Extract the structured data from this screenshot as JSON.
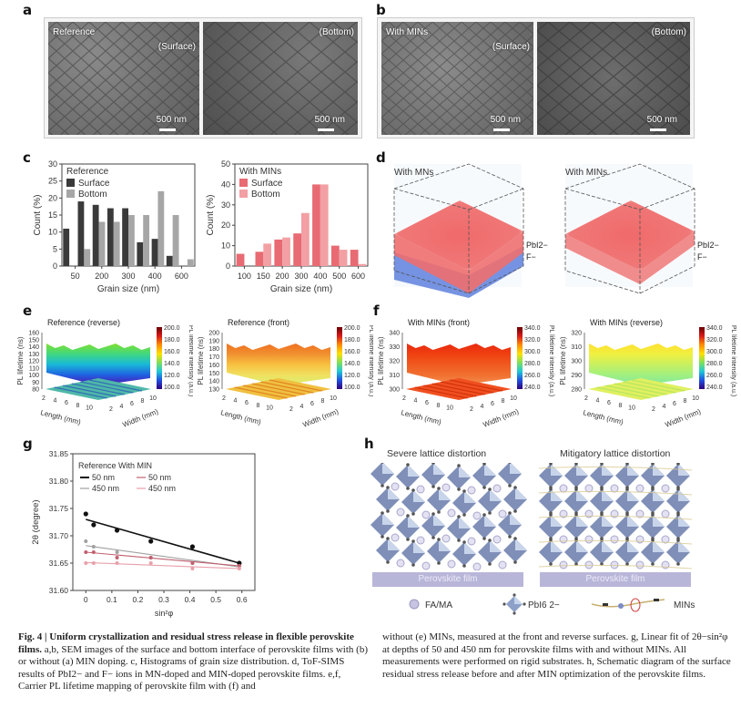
{
  "figure": {
    "panel_labels": [
      "a",
      "b",
      "c",
      "d",
      "e",
      "f",
      "g",
      "h"
    ],
    "panel_a": {
      "label": "Reference",
      "left_tag": "(Surface)",
      "right_tag": "(Bottom)",
      "scale": "500 nm"
    },
    "panel_b": {
      "label": "With MINs",
      "left_tag": "(Surface)",
      "right_tag": "(Bottom)",
      "scale": "500 nm"
    },
    "panel_d": {
      "left_label": "With MNs",
      "right_label": "With MINs",
      "ion1": "PbI2−",
      "ion2": "F−"
    },
    "panel_e": {
      "left": {
        "title": "Reference (reverse)",
        "zlabel": "PL lifetime (ns)",
        "zticks": [
          "160",
          "150",
          "140",
          "130",
          "120",
          "110",
          "100",
          "90",
          "80"
        ],
        "cbar": [
          "200.0",
          "180.0",
          "160.0",
          "140.0",
          "120.0",
          "100.0"
        ]
      },
      "right": {
        "title": "Reference (front)",
        "zlabel": "PL lifetime (ns)",
        "zticks": [
          "200",
          "190",
          "180",
          "170",
          "160",
          "150",
          "140",
          "130"
        ],
        "cbar": [
          "200.0",
          "180.0",
          "160.0",
          "140.0",
          "120.0",
          "100.0"
        ]
      },
      "cbar_label": "PL lifetime intensity (a.u.)",
      "length_label": "Length (mm)",
      "width_label": "Width (mm)",
      "length_ticks": [
        "2",
        "4",
        "6",
        "8",
        "10"
      ],
      "width_ticks": [
        "2",
        "4",
        "6",
        "8",
        "10"
      ]
    },
    "panel_f": {
      "left": {
        "title": "With MINs (front)",
        "zlabel": "PL lifetime (ns)",
        "zticks": [
          "340",
          "330",
          "320",
          "310",
          "300"
        ],
        "cbar": [
          "340.0",
          "320.0",
          "300.0",
          "280.0",
          "260.0",
          "240.0"
        ]
      },
      "right": {
        "title": "With MINs (reverse)",
        "zlabel": "PL lifetime (ns)",
        "zticks": [
          "320",
          "310",
          "300",
          "290",
          "280"
        ],
        "cbar": [
          "340.0",
          "320.0",
          "300.0",
          "280.0",
          "260.0",
          "240.0"
        ]
      }
    },
    "panel_h": {
      "left_title": "Severe lattice distortion",
      "right_title": "Mitigatory lattice distortion",
      "film_label": "Perovskite film",
      "legend": [
        {
          "label": "FA/MA"
        },
        {
          "label": "PbI6 2−"
        },
        {
          "label": "MINs"
        }
      ]
    },
    "caption": {
      "heading": "Fig. 4 | Uniform crystallization and residual stress release in flexible perovskite films.",
      "col1_rest": " a,b, SEM images of the surface and bottom interface of perovskite films with (b) or without (a) MIN doping. c, Histograms of grain size distribution. d, ToF-SIMS results of PbI2− and F− ions in MN-doped and MIN-doped perovskite films. e,f, Carrier PL lifetime mapping of perovskite film with (f) and",
      "col2": "without (e) MINs, measured at the front and reverse surfaces. g, Linear fit of 2θ−sin²φ at depths of 50 and 450 nm for perovskite films with and without MINs. All measurements were performed on rigid substrates. h, Schematic diagram of the surface residual stress release before and after MIN optimization of the perovskite films."
    }
  },
  "chart_data": [
    {
      "id": "c-reference",
      "type": "bar",
      "title": "Reference",
      "xlabel": "Grain size (nm)",
      "ylabel": "Count (%)",
      "ylim": [
        0,
        30
      ],
      "yticks": [
        0,
        5,
        10,
        15,
        20,
        25,
        30
      ],
      "xtick_labels": [
        "50",
        "200",
        "300",
        "400",
        "600"
      ],
      "categories": [
        "50",
        "100",
        "200",
        "250",
        "300",
        "350",
        "400",
        "450",
        "600"
      ],
      "series": [
        {
          "name": "Surface",
          "color": "#3a3a3a",
          "values": [
            11,
            19,
            18,
            17,
            17,
            7,
            8,
            3,
            0
          ]
        },
        {
          "name": "Bottom",
          "color": "#a6a6a6",
          "values": [
            0,
            5,
            13,
            13,
            15,
            15,
            22,
            15,
            2
          ]
        }
      ],
      "legend": "top-left"
    },
    {
      "id": "c-mins",
      "type": "bar",
      "title": "With MINs",
      "xlabel": "Grain size (nm)",
      "ylabel": "Count (%)",
      "ylim": [
        0,
        50
      ],
      "yticks": [
        0,
        10,
        20,
        30,
        40,
        50
      ],
      "xtick_labels": [
        "100",
        "150",
        "200",
        "300",
        "400",
        "500",
        "600"
      ],
      "categories": [
        "100",
        "150",
        "200",
        "300",
        "400",
        "500",
        "600"
      ],
      "series": [
        {
          "name": "Surface",
          "color": "#e86a72",
          "values": [
            6,
            7,
            13,
            16,
            40,
            10,
            8
          ]
        },
        {
          "name": "Bottom",
          "color": "#f2a0a4",
          "values": [
            0,
            11,
            14,
            26,
            40,
            8,
            1
          ]
        }
      ],
      "legend": "top-left"
    },
    {
      "id": "g",
      "type": "scatter",
      "xlabel": "sin²φ",
      "ylabel": "2θ (degree)",
      "xlim": [
        -0.05,
        0.65
      ],
      "ylim": [
        31.6,
        31.85
      ],
      "xticks": [
        "0",
        "0.1",
        "0.2",
        "0.3",
        "0.4",
        "0.5",
        "0.6"
      ],
      "yticks": [
        "31.60",
        "31.65",
        "31.70",
        "31.75",
        "31.80",
        "31.85"
      ],
      "legend_title": "Reference With MIN",
      "x": [
        0,
        0.03,
        0.12,
        0.25,
        0.41,
        0.59
      ],
      "series": [
        {
          "name": "50 nm (Reference)",
          "color": "#111111",
          "values": [
            31.74,
            31.72,
            31.71,
            31.69,
            31.68,
            31.65
          ],
          "fit": [
            31.73,
            31.65
          ]
        },
        {
          "name": "450 nm (Reference)",
          "color": "#a0a0a0",
          "values": [
            31.69,
            31.68,
            31.67,
            31.66,
            31.65,
            31.645
          ],
          "fit": [
            31.682,
            31.643
          ]
        },
        {
          "name": "50 nm (With MIN)",
          "color": "#c06070",
          "values": [
            31.67,
            31.67,
            31.66,
            31.66,
            31.65,
            31.645
          ],
          "fit": [
            31.67,
            31.645
          ]
        },
        {
          "name": "450 nm (With MIN)",
          "color": "#e8a0aa",
          "values": [
            31.65,
            31.65,
            31.65,
            31.65,
            31.64,
            31.64
          ],
          "fit": [
            31.651,
            31.64
          ]
        }
      ],
      "legend_entries": [
        "50 nm",
        "50 nm",
        "450 nm",
        "450 nm"
      ],
      "legend": "top-left"
    }
  ]
}
